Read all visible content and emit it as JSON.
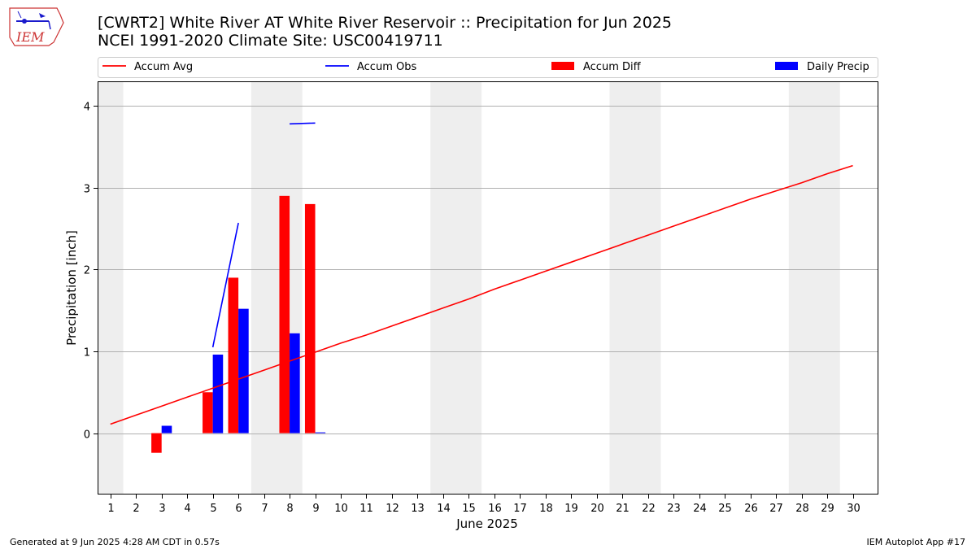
{
  "header": {
    "logo_text": "IEM",
    "title_line1": "[CWRT2] White River  AT White River Reservoir :: Precipitation for Jun 2025",
    "title_line2": "NCEI 1991-2020 Climate Site: USC00419711"
  },
  "footer": {
    "left": "Generated at 9 Jun 2025 4:28 AM CDT in 0.57s",
    "right": "IEM Autoplot App #17"
  },
  "colors": {
    "accum_avg": "#ff0000",
    "accum_obs": "#0000ff",
    "accum_diff": "#ff0000",
    "daily_precip": "#0000ff",
    "weekend_shade": "#eeeeee",
    "grid": "#b0b0b0"
  },
  "chart_data": {
    "type": "bar",
    "xlabel": "June 2025",
    "ylabel": "Precipitation [inch]",
    "ylim": [
      -0.75,
      4.3
    ],
    "xlim": [
      0.5,
      31
    ],
    "grid": true,
    "legend_position": "top",
    "x_ticks": [
      "1",
      "2",
      "3",
      "4",
      "5",
      "6",
      "7",
      "8",
      "9",
      "10",
      "11",
      "12",
      "13",
      "14",
      "15",
      "16",
      "17",
      "18",
      "19",
      "20",
      "21",
      "22",
      "23",
      "24",
      "25",
      "26",
      "27",
      "28",
      "29",
      "30"
    ],
    "y_ticks": [
      0,
      1,
      2,
      3,
      4
    ],
    "weekend_shaded_days": [
      [
        0.5,
        1.5
      ],
      [
        6.5,
        8.5
      ],
      [
        13.5,
        15.5
      ],
      [
        20.5,
        22.5
      ],
      [
        27.5,
        29.5
      ]
    ],
    "legend": [
      "Accum Avg",
      "Accum Obs",
      "Accum Diff",
      "Daily Precip"
    ],
    "accum_avg": {
      "name": "Accum Avg",
      "x": [
        1,
        2,
        3,
        4,
        5,
        6,
        7,
        8,
        9,
        10,
        11,
        12,
        13,
        14,
        15,
        16,
        17,
        18,
        19,
        20,
        21,
        22,
        23,
        24,
        25,
        26,
        27,
        28,
        29,
        30
      ],
      "y": [
        0.11,
        0.22,
        0.33,
        0.44,
        0.55,
        0.66,
        0.77,
        0.88,
        0.99,
        1.1,
        1.2,
        1.31,
        1.42,
        1.53,
        1.64,
        1.76,
        1.87,
        1.98,
        2.09,
        2.2,
        2.31,
        2.42,
        2.53,
        2.64,
        2.75,
        2.86,
        2.96,
        3.06,
        3.17,
        3.27
      ]
    },
    "accum_obs": {
      "name": "Accum Obs",
      "segments": [
        {
          "x": [
            5,
            6
          ],
          "y": [
            1.05,
            2.57
          ]
        },
        {
          "x": [
            8,
            9
          ],
          "y": [
            3.78,
            3.79
          ]
        }
      ]
    },
    "accum_diff": {
      "name": "Accum Diff",
      "days": [
        3,
        5,
        6,
        8,
        9
      ],
      "values": [
        -0.24,
        0.5,
        1.9,
        2.9,
        2.8
      ]
    },
    "daily_precip": {
      "name": "Daily Precip",
      "days": [
        3,
        5,
        6,
        8,
        9
      ],
      "values": [
        0.09,
        0.96,
        1.52,
        1.22,
        0.01
      ]
    }
  }
}
